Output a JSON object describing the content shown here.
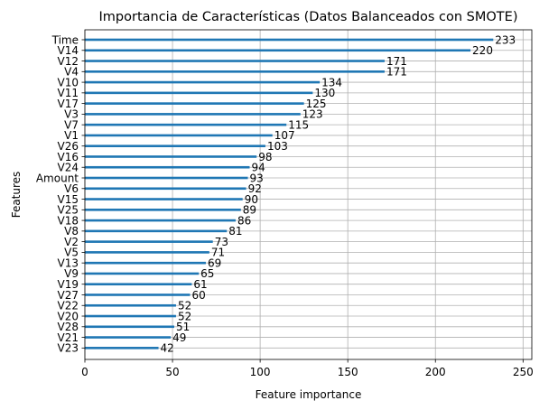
{
  "chart_data": {
    "type": "bar",
    "orientation": "horizontal",
    "title": "Importancia de Características (Datos Balanceados con SMOTE)",
    "xlabel": "Feature importance",
    "ylabel": "Features",
    "xlim": [
      0,
      255
    ],
    "xticks": [
      0,
      50,
      100,
      150,
      200,
      250
    ],
    "grid": true,
    "bar_color": "#1f77b4",
    "grid_color": "#b0b0b0",
    "categories": [
      "Time",
      "V14",
      "V12",
      "V4",
      "V10",
      "V11",
      "V17",
      "V3",
      "V7",
      "V1",
      "V26",
      "V16",
      "V24",
      "Amount",
      "V6",
      "V15",
      "V25",
      "V18",
      "V8",
      "V2",
      "V5",
      "V13",
      "V9",
      "V19",
      "V27",
      "V22",
      "V20",
      "V28",
      "V21",
      "V23"
    ],
    "values": [
      233,
      220,
      171,
      171,
      134,
      130,
      125,
      123,
      115,
      107,
      103,
      98,
      94,
      93,
      92,
      90,
      89,
      86,
      81,
      73,
      71,
      69,
      65,
      61,
      60,
      52,
      52,
      51,
      49,
      42
    ],
    "data_labels": [
      "233",
      "220",
      "171",
      "171",
      "134",
      "130",
      "125",
      "123",
      "115",
      "107",
      "103",
      "98",
      "94",
      "93",
      "92",
      "90",
      "89",
      "86",
      "81",
      "73",
      "71",
      "69",
      "65",
      "61",
      "60",
      "52",
      "52",
      "51",
      "49",
      "42"
    ]
  }
}
